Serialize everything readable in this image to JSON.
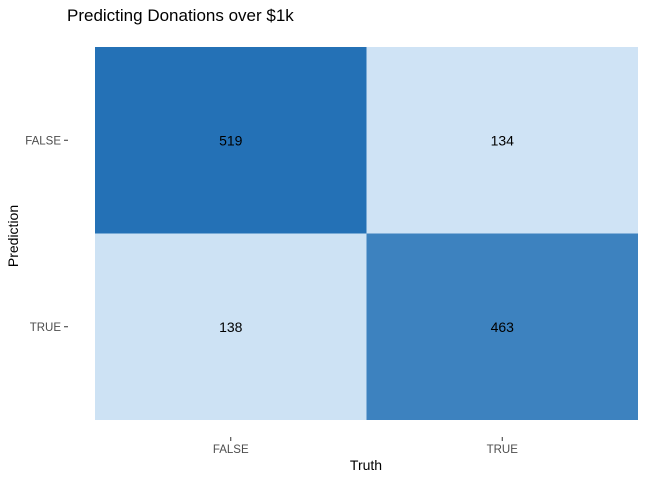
{
  "chart_data": {
    "type": "heatmap",
    "title": "Predicting Donations over $1k",
    "xlabel": "Truth",
    "ylabel": "Prediction",
    "x_categories": [
      "FALSE",
      "TRUE"
    ],
    "y_categories": [
      "FALSE",
      "TRUE"
    ],
    "cells": [
      {
        "truth": "FALSE",
        "prediction": "FALSE",
        "value": 519
      },
      {
        "truth": "TRUE",
        "prediction": "FALSE",
        "value": 134
      },
      {
        "truth": "FALSE",
        "prediction": "TRUE",
        "value": 138
      },
      {
        "truth": "TRUE",
        "prediction": "TRUE",
        "value": 463
      }
    ],
    "color_scale": {
      "low": "#cfe3f5",
      "high": "#2471b6"
    },
    "grid": false,
    "legend": "none"
  }
}
